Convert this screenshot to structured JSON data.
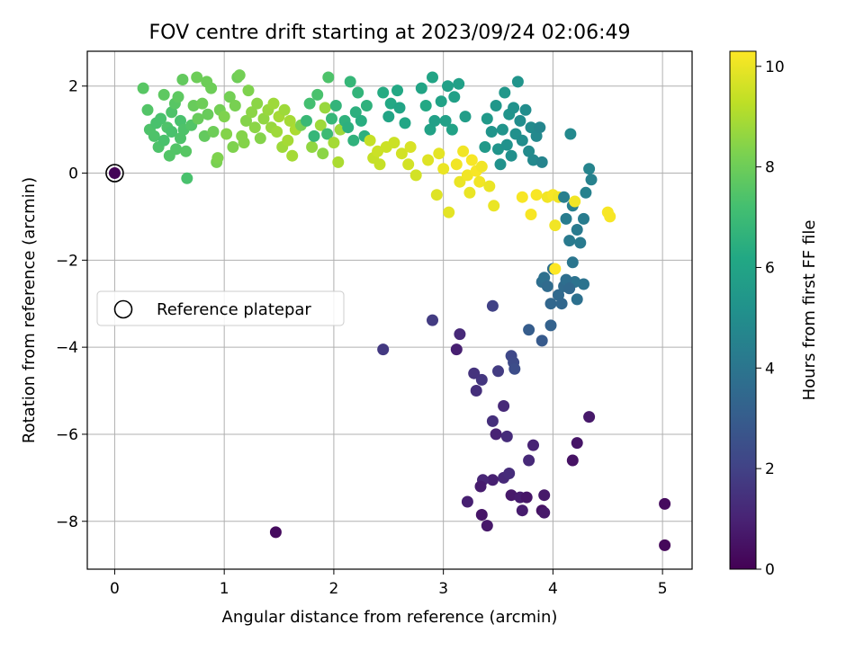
{
  "chart_data": {
    "type": "scatter",
    "title": "FOV centre drift starting at 2023/09/24 02:06:49",
    "xlabel": "Angular distance from reference (arcmin)",
    "ylabel": "Rotation from reference (arcmin)",
    "xlim": [
      -0.25,
      5.27
    ],
    "ylim": [
      -9.1,
      2.8
    ],
    "xticks": [
      0,
      1,
      2,
      3,
      4,
      5
    ],
    "yticks": [
      2,
      0,
      -2,
      -4,
      -6,
      -8
    ],
    "grid": true,
    "colormap": "viridis",
    "colorbar": {
      "label": "Hours from first FF file",
      "min": 0,
      "max": 10.3,
      "ticks": [
        0,
        2,
        4,
        6,
        8,
        10
      ]
    },
    "legend": {
      "placement": "center-left",
      "entries": [
        {
          "label": "Reference platepar",
          "marker": "open-circle"
        }
      ]
    },
    "reference_point": {
      "x": 0,
      "y": 0,
      "h": 0.1
    },
    "points": [
      [
        0.26,
        1.95,
        7.6
      ],
      [
        0.3,
        1.45,
        7.5
      ],
      [
        0.32,
        1.0,
        7.4
      ],
      [
        0.36,
        0.85,
        7.4
      ],
      [
        0.38,
        1.15,
        7.3
      ],
      [
        0.4,
        0.6,
        7.4
      ],
      [
        0.42,
        1.25,
        7.3
      ],
      [
        0.45,
        0.75,
        7.3
      ],
      [
        0.45,
        1.8,
        7.7
      ],
      [
        0.48,
        1.05,
        7.4
      ],
      [
        0.5,
        0.4,
        7.5
      ],
      [
        0.52,
        1.4,
        7.4
      ],
      [
        0.52,
        0.95,
        7.3
      ],
      [
        0.55,
        1.6,
        7.6
      ],
      [
        0.56,
        0.55,
        7.5
      ],
      [
        0.58,
        1.75,
        7.7
      ],
      [
        0.6,
        1.2,
        7.3
      ],
      [
        0.6,
        0.8,
        7.4
      ],
      [
        0.62,
        2.15,
        7.8
      ],
      [
        0.63,
        1.0,
        7.4
      ],
      [
        0.65,
        0.5,
        7.6
      ],
      [
        0.66,
        -0.12,
        7.3
      ],
      [
        0.7,
        1.1,
        7.5
      ],
      [
        0.72,
        1.55,
        7.9
      ],
      [
        0.75,
        2.2,
        8.0
      ],
      [
        0.76,
        1.25,
        7.9
      ],
      [
        0.8,
        1.6,
        8.0
      ],
      [
        0.82,
        0.85,
        7.8
      ],
      [
        0.84,
        2.1,
        8.0
      ],
      [
        0.85,
        1.35,
        7.9
      ],
      [
        0.88,
        1.95,
        8.0
      ],
      [
        0.9,
        0.95,
        8.0
      ],
      [
        0.93,
        0.25,
        8.2
      ],
      [
        0.94,
        0.35,
        8.3
      ],
      [
        0.96,
        1.45,
        8.1
      ],
      [
        1.0,
        1.3,
        8.3
      ],
      [
        1.02,
        0.9,
        8.4
      ],
      [
        1.05,
        1.75,
        8.1
      ],
      [
        1.08,
        0.6,
        8.3
      ],
      [
        1.1,
        1.55,
        8.2
      ],
      [
        1.12,
        2.2,
        8.0
      ],
      [
        1.14,
        2.25,
        8.1
      ],
      [
        1.16,
        0.85,
        8.4
      ],
      [
        1.18,
        0.7,
        8.4
      ],
      [
        1.2,
        1.2,
        8.4
      ],
      [
        1.22,
        1.9,
        8.3
      ],
      [
        1.25,
        1.4,
        8.5
      ],
      [
        1.28,
        1.05,
        8.5
      ],
      [
        1.3,
        1.6,
        8.5
      ],
      [
        1.33,
        0.8,
        8.4
      ],
      [
        1.36,
        1.25,
        8.6
      ],
      [
        1.4,
        1.45,
        8.7
      ],
      [
        1.43,
        1.05,
        8.7
      ],
      [
        1.45,
        1.6,
        8.8
      ],
      [
        1.48,
        0.95,
        8.8
      ],
      [
        1.5,
        1.3,
        8.9
      ],
      [
        1.53,
        0.6,
        8.8
      ],
      [
        1.55,
        1.45,
        8.8
      ],
      [
        1.58,
        0.75,
        8.9
      ],
      [
        1.6,
        1.2,
        8.9
      ],
      [
        1.62,
        0.4,
        8.9
      ],
      [
        1.65,
        1.0,
        9.0
      ],
      [
        1.7,
        1.1,
        8.2
      ],
      [
        1.75,
        1.2,
        6.9
      ],
      [
        1.78,
        1.6,
        7.2
      ],
      [
        1.8,
        0.6,
        8.6
      ],
      [
        1.82,
        0.85,
        6.8
      ],
      [
        1.85,
        1.8,
        7.3
      ],
      [
        1.88,
        1.1,
        8.8
      ],
      [
        1.9,
        0.45,
        8.5
      ],
      [
        1.92,
        1.5,
        8.7
      ],
      [
        1.94,
        0.9,
        7.0
      ],
      [
        1.95,
        2.2,
        7.4
      ],
      [
        1.98,
        1.25,
        6.8
      ],
      [
        2.0,
        0.7,
        8.9
      ],
      [
        2.02,
        1.55,
        6.7
      ],
      [
        2.04,
        0.25,
        9.0
      ],
      [
        2.06,
        1.0,
        8.8
      ],
      [
        2.1,
        1.2,
        6.6
      ],
      [
        2.13,
        1.05,
        6.5
      ],
      [
        2.15,
        2.1,
        6.8
      ],
      [
        2.18,
        0.75,
        6.6
      ],
      [
        2.2,
        1.4,
        6.5
      ],
      [
        2.22,
        1.85,
        6.7
      ],
      [
        2.25,
        1.2,
        6.4
      ],
      [
        2.28,
        0.85,
        6.5
      ],
      [
        2.3,
        1.55,
        6.6
      ],
      [
        2.33,
        0.75,
        9.4
      ],
      [
        2.36,
        0.35,
        9.4
      ],
      [
        2.4,
        0.5,
        9.5
      ],
      [
        2.42,
        0.2,
        9.4
      ],
      [
        2.45,
        1.85,
        6.3
      ],
      [
        2.48,
        0.6,
        9.5
      ],
      [
        2.5,
        1.3,
        6.0
      ],
      [
        2.52,
        1.6,
        6.2
      ],
      [
        2.55,
        0.7,
        9.5
      ],
      [
        2.58,
        1.9,
        6.2
      ],
      [
        2.6,
        1.5,
        6.0
      ],
      [
        2.62,
        0.45,
        9.6
      ],
      [
        2.65,
        1.15,
        6.1
      ],
      [
        2.68,
        0.2,
        9.6
      ],
      [
        2.7,
        0.6,
        9.7
      ],
      [
        2.75,
        -0.05,
        9.6
      ],
      [
        2.8,
        1.95,
        6.0
      ],
      [
        2.84,
        1.55,
        6.2
      ],
      [
        2.86,
        0.3,
        9.8
      ],
      [
        2.88,
        1.0,
        5.9
      ],
      [
        2.9,
        2.2,
        6.0
      ],
      [
        2.92,
        1.2,
        5.8
      ],
      [
        2.94,
        -0.5,
        9.8
      ],
      [
        2.96,
        0.45,
        9.9
      ],
      [
        2.98,
        1.65,
        5.9
      ],
      [
        3.0,
        0.1,
        10.0
      ],
      [
        3.02,
        1.2,
        5.8
      ],
      [
        3.04,
        2.0,
        5.8
      ],
      [
        3.05,
        -0.9,
        9.9
      ],
      [
        3.08,
        1.0,
        5.9
      ],
      [
        3.1,
        1.75,
        5.8
      ],
      [
        3.12,
        0.2,
        10.1
      ],
      [
        3.14,
        2.05,
        5.8
      ],
      [
        3.15,
        -0.2,
        10.0
      ],
      [
        3.18,
        0.5,
        10.1
      ],
      [
        3.2,
        1.3,
        5.7
      ],
      [
        3.22,
        -0.05,
        10.1
      ],
      [
        3.24,
        -0.45,
        10.0
      ],
      [
        3.26,
        0.3,
        10.2
      ],
      [
        3.3,
        0.05,
        10.2
      ],
      [
        3.33,
        -0.2,
        10.1
      ],
      [
        3.35,
        0.15,
        10.1
      ],
      [
        3.38,
        0.6,
        5.5
      ],
      [
        3.4,
        1.25,
        5.5
      ],
      [
        3.42,
        -0.3,
        10.0
      ],
      [
        3.44,
        0.95,
        5.3
      ],
      [
        3.46,
        -0.75,
        10.0
      ],
      [
        3.48,
        1.55,
        5.4
      ],
      [
        3.5,
        0.55,
        5.3
      ],
      [
        3.52,
        0.2,
        5.2
      ],
      [
        3.54,
        1.0,
        5.3
      ],
      [
        3.56,
        1.85,
        5.4
      ],
      [
        3.58,
        0.65,
        5.2
      ],
      [
        3.6,
        1.35,
        5.3
      ],
      [
        3.62,
        0.4,
        5.1
      ],
      [
        3.64,
        1.5,
        5.2
      ],
      [
        3.66,
        0.9,
        5.1
      ],
      [
        3.68,
        2.1,
        5.3
      ],
      [
        3.7,
        1.2,
        5.0
      ],
      [
        3.72,
        0.75,
        5.0
      ],
      [
        3.75,
        1.45,
        5.0
      ],
      [
        3.78,
        0.5,
        4.9
      ],
      [
        3.8,
        1.05,
        4.9
      ],
      [
        3.82,
        0.3,
        4.8
      ],
      [
        3.85,
        0.85,
        4.8
      ],
      [
        3.88,
        1.05,
        4.7
      ],
      [
        3.9,
        0.25,
        4.6
      ],
      [
        3.72,
        -0.55,
        10.2
      ],
      [
        3.8,
        -0.95,
        10.2
      ],
      [
        3.85,
        -0.5,
        10.2
      ],
      [
        3.95,
        -0.55,
        10.1
      ],
      [
        4.0,
        -0.5,
        10.2
      ],
      [
        4.02,
        -1.2,
        10.1
      ],
      [
        4.05,
        -0.55,
        10.1
      ],
      [
        4.1,
        -0.55,
        4.4
      ],
      [
        4.12,
        -1.05,
        4.3
      ],
      [
        4.15,
        -1.55,
        4.2
      ],
      [
        4.18,
        -0.75,
        4.4
      ],
      [
        4.2,
        -0.65,
        10.1
      ],
      [
        4.22,
        -1.3,
        4.2
      ],
      [
        4.25,
        -1.6,
        4.2
      ],
      [
        4.28,
        -1.05,
        4.3
      ],
      [
        4.3,
        -0.45,
        4.5
      ],
      [
        4.33,
        0.1,
        4.6
      ],
      [
        4.35,
        -0.15,
        4.5
      ],
      [
        4.5,
        -0.9,
        10.2
      ],
      [
        4.52,
        -1.0,
        10.2
      ],
      [
        4.18,
        -2.05,
        4.0
      ],
      [
        4.2,
        -2.5,
        3.9
      ],
      [
        4.22,
        -2.9,
        3.8
      ],
      [
        4.28,
        -2.55,
        3.9
      ],
      [
        4.16,
        0.9,
        4.8
      ],
      [
        3.9,
        -2.5,
        3.7
      ],
      [
        3.92,
        -2.4,
        3.8
      ],
      [
        3.95,
        -2.6,
        3.6
      ],
      [
        3.98,
        -3.0,
        3.4
      ],
      [
        4.0,
        -2.2,
        3.7
      ],
      [
        4.02,
        -2.2,
        10.3
      ],
      [
        4.05,
        -2.8,
        3.5
      ],
      [
        4.08,
        -3.0,
        3.4
      ],
      [
        4.1,
        -2.6,
        3.6
      ],
      [
        4.12,
        -2.45,
        3.7
      ],
      [
        4.15,
        -2.65,
        3.5
      ],
      [
        3.78,
        -3.6,
        3.0
      ],
      [
        3.9,
        -3.85,
        2.9
      ],
      [
        3.98,
        -3.5,
        3.2
      ],
      [
        2.9,
        -3.38,
        1.8
      ],
      [
        2.45,
        -4.05,
        1.7
      ],
      [
        3.45,
        -3.05,
        2.0
      ],
      [
        3.62,
        -4.2,
        2.2
      ],
      [
        3.64,
        -4.35,
        2.3
      ],
      [
        3.65,
        -4.5,
        2.4
      ],
      [
        3.5,
        -4.55,
        1.8
      ],
      [
        3.35,
        -4.75,
        1.6
      ],
      [
        3.28,
        -4.6,
        1.5
      ],
      [
        3.3,
        -5.0,
        1.4
      ],
      [
        3.15,
        -3.7,
        1.2
      ],
      [
        3.12,
        -4.05,
        0.9
      ],
      [
        3.55,
        -5.35,
        1.2
      ],
      [
        3.45,
        -5.7,
        1.4
      ],
      [
        3.48,
        -6.0,
        1.0
      ],
      [
        3.58,
        -6.05,
        1.3
      ],
      [
        3.78,
        -6.6,
        1.2
      ],
      [
        3.82,
        -6.25,
        1.0
      ],
      [
        3.55,
        -7.0,
        1.2
      ],
      [
        3.6,
        -6.9,
        1.3
      ],
      [
        3.45,
        -7.05,
        0.9
      ],
      [
        3.36,
        -7.05,
        1.1
      ],
      [
        3.34,
        -7.2,
        0.8
      ],
      [
        3.22,
        -7.55,
        0.9
      ],
      [
        3.35,
        -7.85,
        0.6
      ],
      [
        3.4,
        -8.1,
        0.7
      ],
      [
        3.62,
        -7.4,
        0.7
      ],
      [
        3.7,
        -7.45,
        0.8
      ],
      [
        3.76,
        -7.45,
        0.6
      ],
      [
        3.72,
        -7.75,
        0.8
      ],
      [
        3.92,
        -7.4,
        0.7
      ],
      [
        3.9,
        -7.75,
        0.5
      ],
      [
        3.92,
        -7.8,
        0.7
      ],
      [
        4.18,
        -6.6,
        0.5
      ],
      [
        4.22,
        -6.2,
        0.6
      ],
      [
        4.33,
        -5.6,
        0.7
      ],
      [
        1.47,
        -8.25,
        0.3
      ],
      [
        5.02,
        -7.6,
        0.3
      ],
      [
        5.02,
        -8.55,
        0.2
      ]
    ]
  }
}
